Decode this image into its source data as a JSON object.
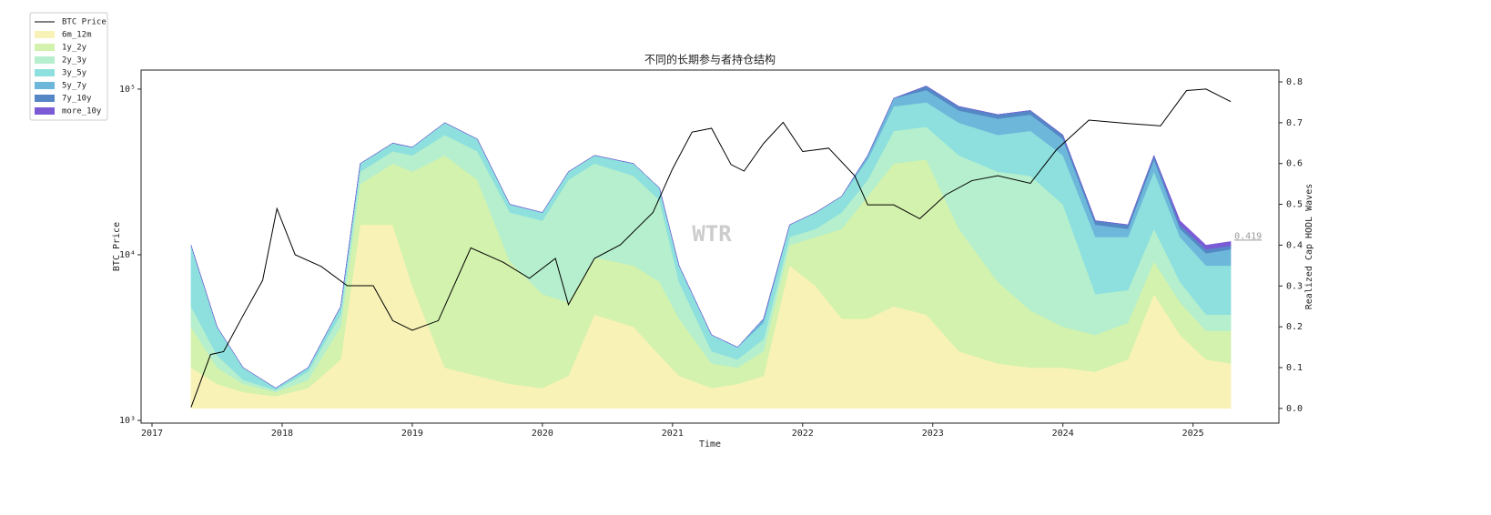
{
  "chart_data": {
    "type": "stacked_area",
    "title": "不同的长期参与者持仓结构",
    "x_label": "Time",
    "y_label": "BTC Price",
    "y2_label": "Realized Cap HODL Waves",
    "watermark": "WTR",
    "end_label": "0.419",
    "legend": "upper left",
    "xlim": [
      2016.916,
      2025.66
    ],
    "xticks": [
      2017,
      2018,
      2019,
      2020,
      2021,
      2022,
      2023,
      2024,
      2025
    ],
    "ylim": [
      963,
      130300
    ],
    "ylog": true,
    "yticks": [
      {
        "value": 1000,
        "label": "10³"
      },
      {
        "value": 10000,
        "label": "10⁴"
      },
      {
        "value": 100000,
        "label": "10⁵"
      }
    ],
    "y2lim": [
      -0.036,
      0.829
    ],
    "y2ticks": [
      {
        "value": 0,
        "label": "0.0"
      },
      0.1,
      0.2,
      0.3,
      0.4,
      0.5,
      0.6,
      0.7,
      0.8
    ],
    "x": [
      2017.3,
      2017.5,
      2017.7,
      2017.95,
      2018.2,
      2018.45,
      2018.6,
      2018.85,
      2019.0,
      2019.25,
      2019.5,
      2019.75,
      2020.0,
      2020.2,
      2020.4,
      2020.7,
      2020.9,
      2021.05,
      2021.3,
      2021.5,
      2021.7,
      2021.9,
      2022.1,
      2022.3,
      2022.5,
      2022.7,
      2022.95,
      2023.2,
      2023.5,
      2023.75,
      2024.0,
      2024.25,
      2024.5,
      2024.7,
      2024.9,
      2025.1,
      2025.29
    ],
    "series": [
      {
        "name": "6m_12m",
        "color": "#f8f2b6",
        "axis": "y2",
        "values": [
          0.1,
          0.06,
          0.04,
          0.03,
          0.05,
          0.12,
          0.45,
          0.45,
          0.3,
          0.1,
          0.08,
          0.06,
          0.05,
          0.08,
          0.23,
          0.2,
          0.13,
          0.08,
          0.05,
          0.06,
          0.08,
          0.35,
          0.3,
          0.22,
          0.22,
          0.25,
          0.23,
          0.14,
          0.11,
          0.1,
          0.1,
          0.09,
          0.12,
          0.28,
          0.18,
          0.12,
          0.11
        ]
      },
      {
        "name": "1y_2y",
        "color": "#d3f2ad",
        "axis": "y2",
        "values": [
          0.1,
          0.04,
          0.02,
          0.01,
          0.02,
          0.08,
          0.1,
          0.15,
          0.28,
          0.52,
          0.48,
          0.3,
          0.23,
          0.18,
          0.14,
          0.15,
          0.18,
          0.14,
          0.06,
          0.04,
          0.06,
          0.05,
          0.12,
          0.22,
          0.3,
          0.35,
          0.38,
          0.3,
          0.2,
          0.14,
          0.1,
          0.09,
          0.09,
          0.08,
          0.08,
          0.07,
          0.08
        ]
      },
      {
        "name": "2y_3y",
        "color": "#b5efcd",
        "axis": "y2",
        "values": [
          0.05,
          0.03,
          0.01,
          0.005,
          0.02,
          0.03,
          0.03,
          0.03,
          0.04,
          0.05,
          0.07,
          0.12,
          0.18,
          0.3,
          0.23,
          0.22,
          0.2,
          0.09,
          0.03,
          0.02,
          0.03,
          0.02,
          0.02,
          0.04,
          0.04,
          0.08,
          0.08,
          0.18,
          0.27,
          0.33,
          0.3,
          0.1,
          0.08,
          0.08,
          0.05,
          0.04,
          0.04
        ]
      },
      {
        "name": "3y_5y",
        "color": "#8de0de",
        "axis": "y2",
        "values": [
          0.15,
          0.07,
          0.03,
          0.005,
          0.01,
          0.02,
          0.02,
          0.02,
          0.02,
          0.03,
          0.03,
          0.02,
          0.02,
          0.02,
          0.02,
          0.03,
          0.03,
          0.04,
          0.04,
          0.03,
          0.04,
          0.03,
          0.04,
          0.04,
          0.05,
          0.06,
          0.06,
          0.08,
          0.09,
          0.11,
          0.12,
          0.14,
          0.13,
          0.14,
          0.11,
          0.12,
          0.12
        ]
      },
      {
        "name": "5y_7y",
        "color": "#6cb7da",
        "axis": "y2",
        "values": [
          0,
          0,
          0,
          0,
          0,
          0,
          0,
          0,
          0,
          0,
          0,
          0,
          0,
          0,
          0,
          0,
          0,
          0,
          0,
          0,
          0.01,
          0,
          0,
          0,
          0.01,
          0.02,
          0.03,
          0.03,
          0.04,
          0.04,
          0.04,
          0.03,
          0.02,
          0.03,
          0.02,
          0.03,
          0.04
        ]
      },
      {
        "name": "7y_10y",
        "color": "#5586c6",
        "axis": "y2",
        "values": [
          0,
          0,
          0,
          0,
          0,
          0,
          0,
          0,
          0,
          0,
          0,
          0,
          0,
          0,
          0,
          0,
          0,
          0,
          0,
          0,
          0,
          0,
          0,
          0,
          0,
          0,
          0.01,
          0.01,
          0.01,
          0.01,
          0.01,
          0.01,
          0.01,
          0.01,
          0.01,
          0.01,
          0.009
        ]
      },
      {
        "name": "more_10y",
        "color": "#7b5ad6",
        "axis": "y2",
        "values": [
          0,
          0,
          0,
          0,
          0,
          0,
          0,
          0,
          0,
          0,
          0,
          0,
          0,
          0,
          0,
          0,
          0,
          0,
          0,
          0,
          0,
          0,
          0,
          0,
          0,
          0,
          0,
          0,
          0,
          0,
          0,
          0,
          0,
          0,
          0.01,
          0.01,
          0.01
        ]
      }
    ],
    "line": {
      "name": "BTC Price",
      "color": "#000000",
      "axis": "y",
      "x": [
        2017.3,
        2017.45,
        2017.55,
        2017.7,
        2017.85,
        2017.96,
        2018.1,
        2018.3,
        2018.5,
        2018.7,
        2018.85,
        2019.0,
        2019.2,
        2019.45,
        2019.7,
        2019.9,
        2020.1,
        2020.2,
        2020.4,
        2020.6,
        2020.85,
        2021.0,
        2021.15,
        2021.3,
        2021.45,
        2021.55,
        2021.7,
        2021.85,
        2022.0,
        2022.2,
        2022.4,
        2022.5,
        2022.7,
        2022.9,
        2023.1,
        2023.3,
        2023.5,
        2023.75,
        2023.95,
        2024.2,
        2024.5,
        2024.75,
        2024.95,
        2025.1,
        2025.29
      ],
      "values": [
        1200,
        2500,
        2600,
        4300,
        7000,
        19000,
        10000,
        8500,
        6500,
        6500,
        4000,
        3500,
        4000,
        11000,
        9000,
        7200,
        9500,
        5000,
        9500,
        11500,
        18000,
        33000,
        55000,
        58000,
        35000,
        32000,
        47000,
        63000,
        42000,
        44000,
        30000,
        20000,
        20000,
        16500,
        23000,
        28000,
        30000,
        27000,
        43000,
        65000,
        62000,
        60000,
        98000,
        100000,
        84000
      ]
    }
  }
}
